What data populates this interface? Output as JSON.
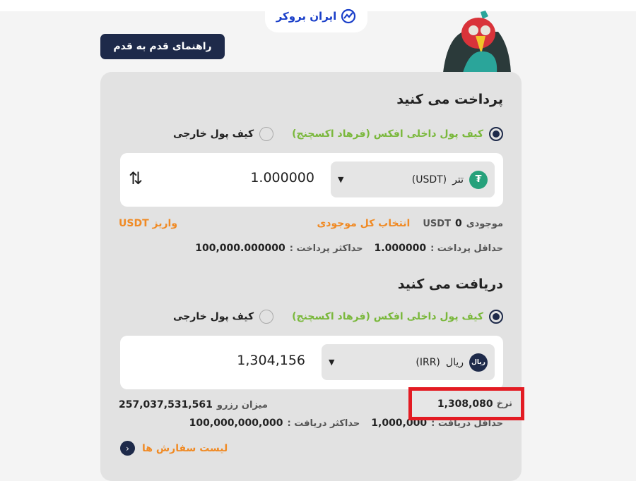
{
  "brand": {
    "logo_text": "ایران بروکر"
  },
  "guide_button": "راهنمای قدم به قدم",
  "pay": {
    "title": "پرداخت می کنید",
    "wallet_internal": "کیف پول داخلی افکس (فرهاد اکسچنج)",
    "wallet_external": "کیف پول خارجی",
    "selected_wallet": "internal",
    "currency": "تتر",
    "currency_code": "(USDT)",
    "amount": "1.000000",
    "balance_label": "موجودی",
    "balance_value": "0",
    "balance_unit": "USDT",
    "select_all": "انتخاب کل موجودی",
    "deposit": "واریز USDT",
    "min_label": "حداقل پرداخت :",
    "min_value": "1.000000",
    "max_label": "حداکثر پرداخت :",
    "max_value": "100,000.000000"
  },
  "receive": {
    "title": "دریافت می کنید",
    "wallet_internal": "کیف پول داخلی افکس (فرهاد اکسچنج)",
    "wallet_external": "کیف پول خارجی",
    "selected_wallet": "internal",
    "currency": "ریال",
    "currency_code": "(IRR)",
    "coin_label": "ریال",
    "amount": "1,304,156",
    "rate_label": "نرخ",
    "rate_value": "1,308,080",
    "reserve_label": "میزان رزرو",
    "reserve_value": "257,037,531,561",
    "min_label": "حداقل دریافت :",
    "min_value": "1,000,000",
    "max_label": "حداکثر دریافت :",
    "max_value": "100,000,000,000"
  },
  "orders_link": "لیست سفارش ها",
  "colors": {
    "navy": "#1e2a4a",
    "green": "#7ab83c",
    "orange": "#f08a24",
    "tether": "#26a17b",
    "highlight": "#e31b23"
  }
}
